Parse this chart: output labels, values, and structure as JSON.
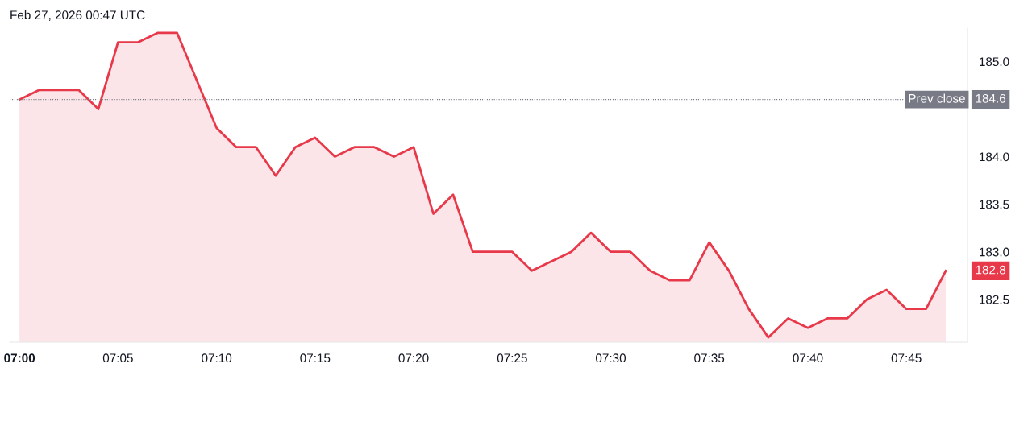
{
  "chart_data": {
    "type": "area",
    "color": "#e8394a",
    "x": [
      7.0,
      7.0167,
      7.0333,
      7.05,
      7.0667,
      7.0833,
      7.1,
      7.1167,
      7.1333,
      7.15,
      7.1667,
      7.1833,
      7.2,
      7.2167,
      7.2333,
      7.25,
      7.2667,
      7.2833,
      7.3,
      7.3167,
      7.3333,
      7.35,
      7.3667,
      7.3833,
      7.4,
      7.4167,
      7.4333,
      7.45,
      7.4667,
      7.4833,
      7.5,
      7.5167,
      7.5333,
      7.55,
      7.5667,
      7.5833,
      7.6,
      7.6167,
      7.6333,
      7.65,
      7.6667,
      7.6833,
      7.7,
      7.7167,
      7.7333,
      7.75,
      7.7667,
      7.7833
    ],
    "values": [
      184.6,
      184.7,
      184.7,
      184.7,
      184.5,
      185.2,
      185.2,
      185.3,
      185.3,
      184.8,
      184.3,
      184.1,
      184.1,
      183.8,
      184.1,
      184.2,
      184.0,
      184.1,
      184.1,
      184.0,
      184.1,
      183.4,
      183.6,
      183.0,
      183.0,
      183.0,
      182.8,
      182.9,
      183.0,
      183.2,
      183.0,
      183.0,
      182.8,
      182.7,
      182.7,
      183.1,
      182.8,
      182.4,
      182.1,
      182.3,
      182.2,
      182.3,
      182.3,
      182.5,
      182.6,
      182.4,
      182.4,
      182.8
    ],
    "xlim": [
      6.9917,
      7.8017
    ],
    "ylim": [
      182.05,
      185.35
    ],
    "xticks": [
      {
        "value": 7.0,
        "label": "07:00"
      },
      {
        "value": 7.0833,
        "label": "07:05"
      },
      {
        "value": 7.1667,
        "label": "07:10"
      },
      {
        "value": 7.25,
        "label": "07:15"
      },
      {
        "value": 7.3333,
        "label": "07:20"
      },
      {
        "value": 7.4167,
        "label": "07:25"
      },
      {
        "value": 7.5,
        "label": "07:30"
      },
      {
        "value": 7.5833,
        "label": "07:35"
      },
      {
        "value": 7.6667,
        "label": "07:40"
      },
      {
        "value": 7.75,
        "label": "07:45"
      }
    ],
    "yticks": [
      182.5,
      {
        "value": 183.0,
        "label": "183.0"
      },
      183.5,
      {
        "value": 184.0,
        "label": "184.0"
      },
      {
        "value": 185.0,
        "label": "185.0"
      }
    ],
    "grid": false,
    "legend": false,
    "marker": "none",
    "line_style": "solid",
    "ref_lines": [
      {
        "axis": "y",
        "value": 184.6,
        "label": "Prev close",
        "color": "#787b86",
        "line_style": "dotted"
      }
    ],
    "annotations": [
      "Feb 27, 2026 00:47 UTC",
      "184.6",
      "182.8"
    ]
  }
}
